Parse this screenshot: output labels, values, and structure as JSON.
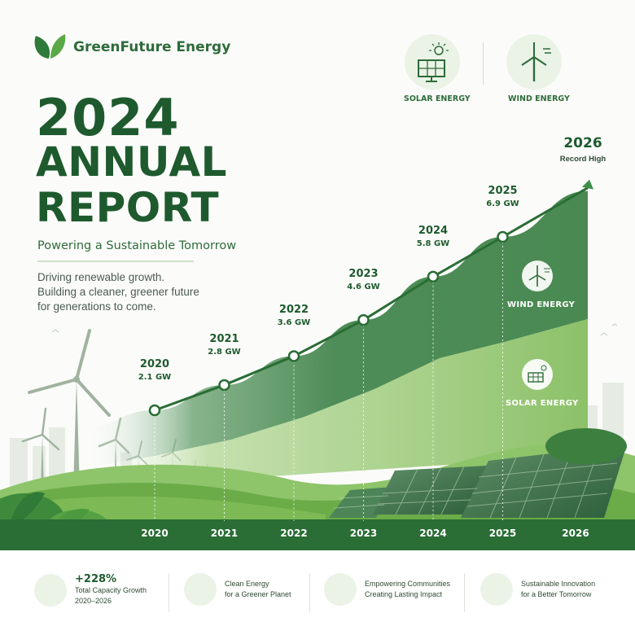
{
  "brand": {
    "name": "GreenFuture Energy",
    "logo_icon": "leaf-icon"
  },
  "headline": {
    "year": "2024",
    "line1": "ANNUAL",
    "line2": "REPORT"
  },
  "tagline": "Powering a Sustainable Tomorrow",
  "description": [
    "Driving renewable growth.",
    "Building a cleaner, greener future",
    "for generations to come."
  ],
  "top_legend": [
    {
      "label": "SOLAR ENERGY",
      "icon": "solar-panel-icon"
    },
    {
      "label": "WIND ENERGY",
      "icon": "wind-turbine-icon"
    }
  ],
  "colors": {
    "primary": "#1e5a2d",
    "wind_band": "#4e8c58",
    "solar_band": "#93c46e",
    "hills": "#6bab48",
    "ground": "#2a6d35"
  },
  "chart_data": {
    "type": "area",
    "x": [
      "2020",
      "2021",
      "2022",
      "2023",
      "2024",
      "2025",
      "2026"
    ],
    "series": [
      {
        "name": "WIND ENERGY",
        "icon": "wind-turbine-icon"
      },
      {
        "name": "SOLAR ENERGY",
        "icon": "solar-panel-icon"
      }
    ],
    "points": [
      {
        "year": "2020",
        "value": 2.1,
        "label": "2.1 GW"
      },
      {
        "year": "2021",
        "value": 2.8,
        "label": "2.8 GW"
      },
      {
        "year": "2022",
        "value": 3.6,
        "label": "3.6 GW"
      },
      {
        "year": "2023",
        "value": 4.6,
        "label": "4.6 GW"
      },
      {
        "year": "2024",
        "value": 5.8,
        "label": "5.8 GW"
      },
      {
        "year": "2025",
        "value": 6.9,
        "label": "6.9 GW"
      }
    ],
    "peak": {
      "year": "2026",
      "label": "Record High"
    },
    "ylim": [
      0,
      8.5
    ],
    "grid": false,
    "legend": "inside-right"
  },
  "stats": [
    {
      "icon": "growth-chart-icon",
      "main": "+228%",
      "lines": [
        "Total Capacity Growth",
        "2020–2026"
      ]
    },
    {
      "icon": "leaf-icon",
      "main": "",
      "lines": [
        "Clean Energy",
        "for a Greener Planet"
      ]
    },
    {
      "icon": "community-icon",
      "main": "",
      "lines": [
        "Empowering Communities",
        "Creating Lasting Impact"
      ]
    },
    {
      "icon": "globe-icon",
      "main": "",
      "lines": [
        "Sustainable Innovation",
        "for a Better Tomorrow"
      ]
    }
  ]
}
